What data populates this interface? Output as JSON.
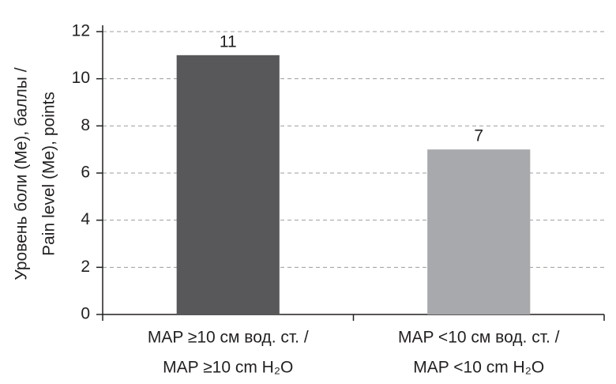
{
  "chart_data": {
    "type": "bar",
    "y_label": [
      "Уровень боли (Me), баллы /",
      "Pain level (Me), points"
    ],
    "categories": [
      [
        "MAP ≥10 см вод. ст. /",
        "MAP ≥10 cm H₂O"
      ],
      [
        "MAP <10 см вод. ст. /",
        "MAP <10 cm H₂O"
      ]
    ],
    "values": [
      11,
      7
    ],
    "colors": [
      "#58585a",
      "#a7a9ac"
    ],
    "ylim": [
      0,
      12
    ],
    "yticks": [
      0,
      2,
      4,
      6,
      8,
      10,
      12
    ],
    "grid": true
  }
}
